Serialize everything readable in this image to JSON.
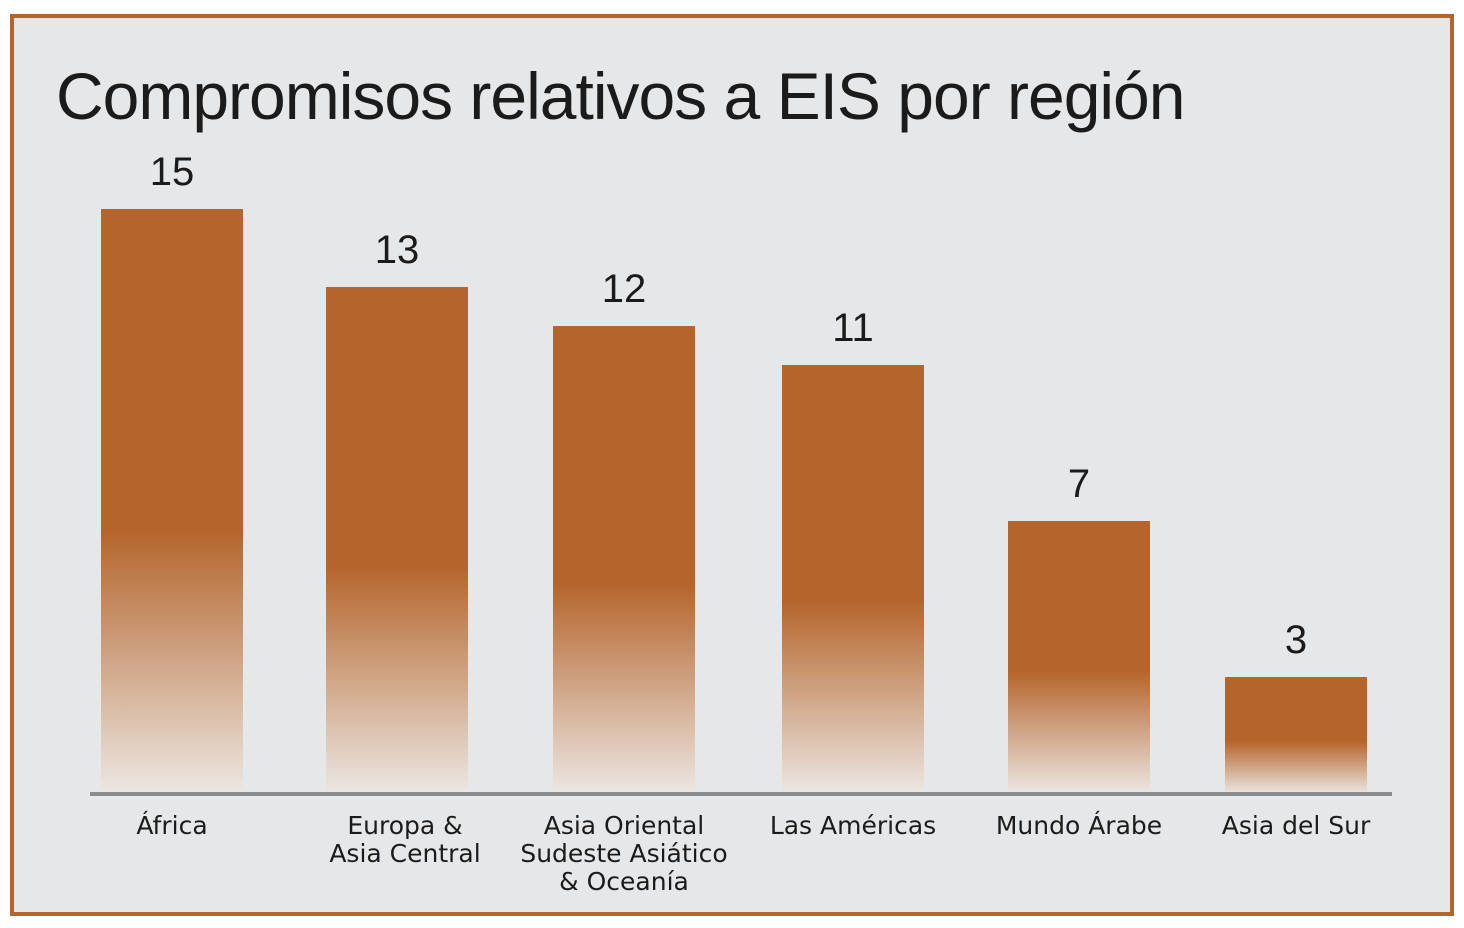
{
  "colors": {
    "frame": "#b5652b",
    "panel": "#e6e7e8",
    "bar": "#b5652b",
    "bar_fade": "#ece7e3",
    "axis": "#8a8b8d",
    "text": "#1b1b1b"
  },
  "chart_data": {
    "type": "bar",
    "title": "Compromisos relativos a EIS por región",
    "categories": [
      [
        "África"
      ],
      [
        "Europa &",
        "Asia Central"
      ],
      [
        "Asia Oriental",
        "Sudeste Asiático",
        "& Oceanía"
      ],
      [
        "Las Américas"
      ],
      [
        "Mundo Árabe"
      ],
      [
        "Asia del Sur"
      ]
    ],
    "values": [
      15,
      13,
      12,
      11,
      7,
      3
    ],
    "data_labels": [
      "15",
      "13",
      "12",
      "11",
      "7",
      "3"
    ],
    "xlabel": "",
    "ylabel": "",
    "ylim": [
      0,
      15
    ],
    "grid": false,
    "legend": "none"
  }
}
